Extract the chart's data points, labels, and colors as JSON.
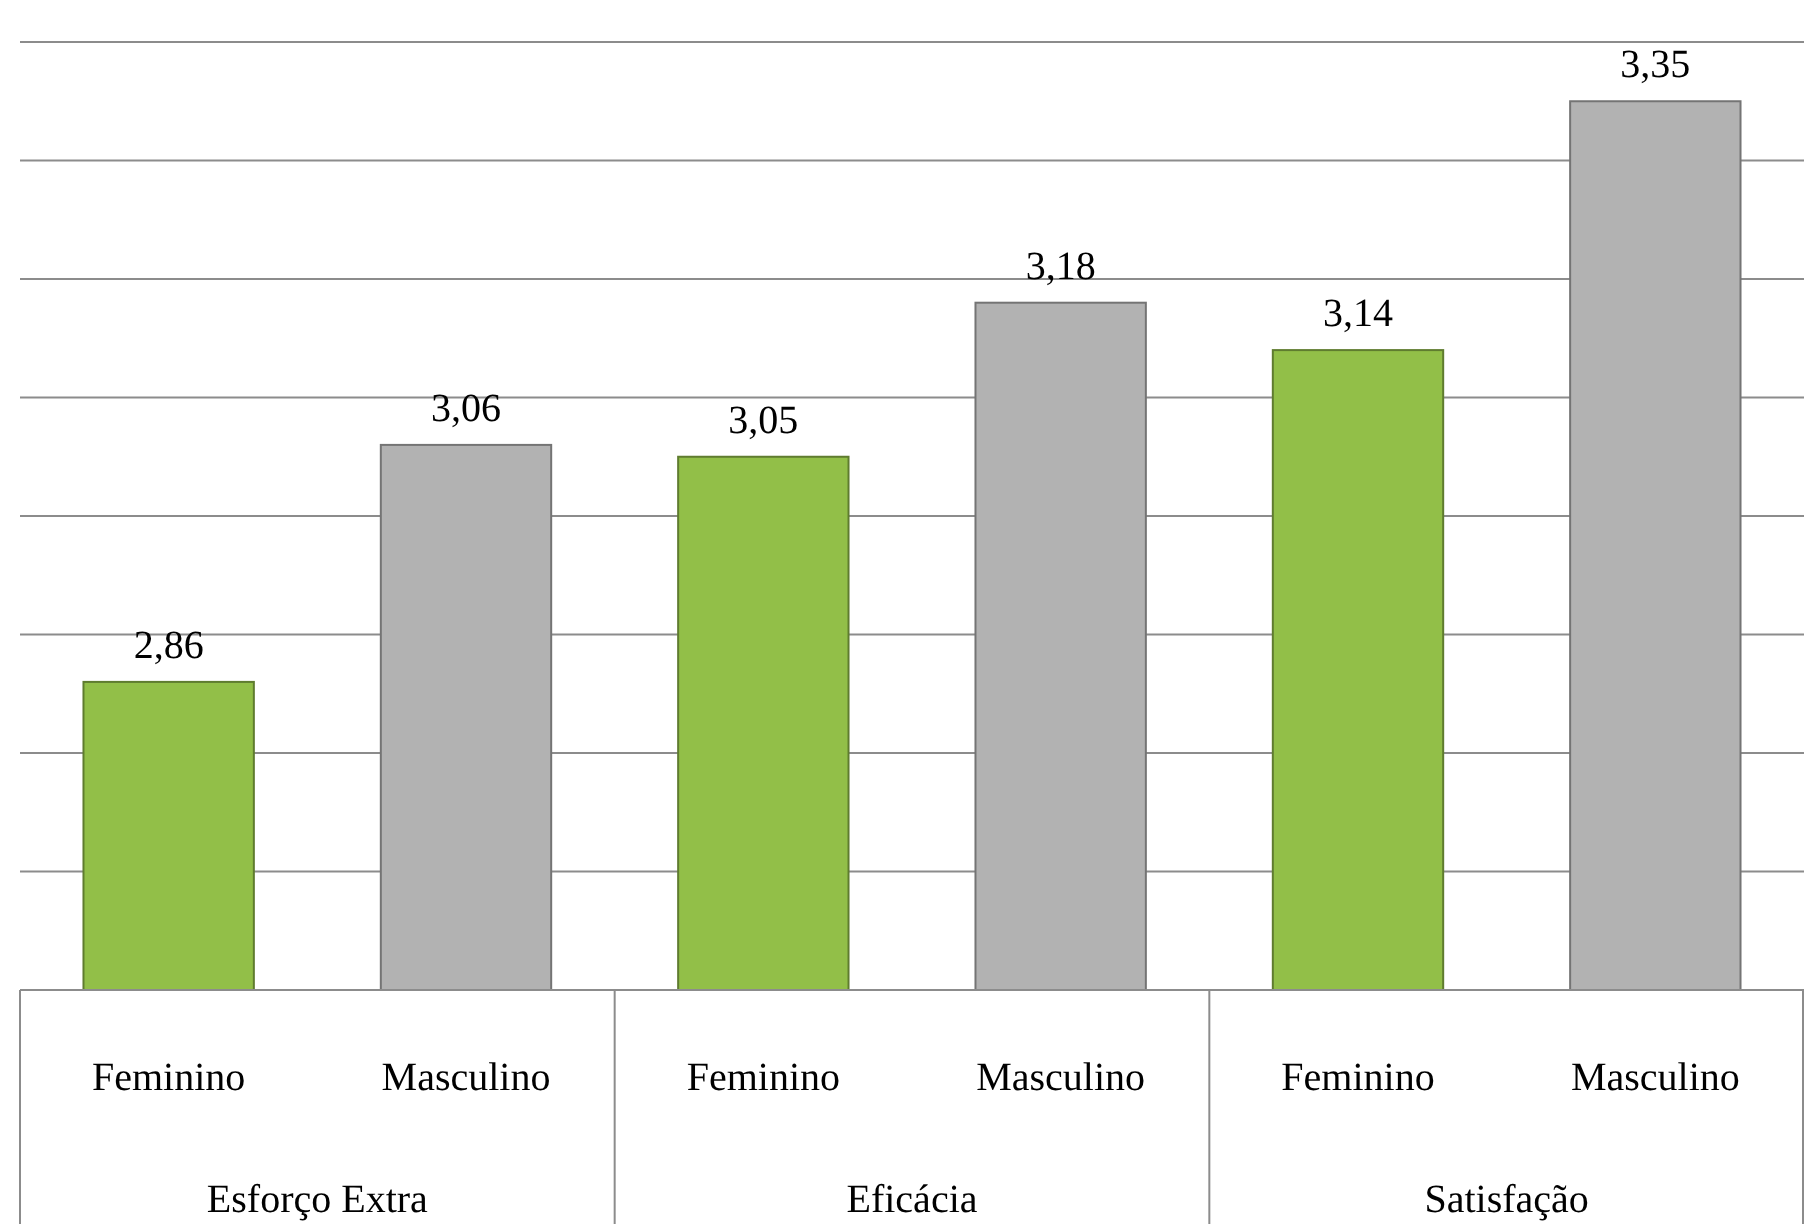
{
  "chart_data": {
    "type": "bar",
    "categories": [
      "Esforço Extra",
      "Eficácia",
      "Satisfação"
    ],
    "series": [
      {
        "name": "Feminino",
        "color": "#92bf48",
        "values": [
          2.86,
          3.05,
          3.14
        ],
        "value_labels": [
          "2,86",
          "3,05",
          "3,14"
        ]
      },
      {
        "name": "Masculino",
        "color": "#b2b2b2",
        "values": [
          3.06,
          3.18,
          3.35
        ],
        "value_labels": [
          "3,06",
          "3,18",
          "3,35"
        ]
      }
    ],
    "ylim": [
      2.6,
      3.4
    ],
    "yticks": [
      {
        "value": 2.6,
        "label": null
      },
      {
        "value": 2.7,
        "label": null
      },
      {
        "value": 2.8,
        "label": null
      },
      {
        "value": 2.9,
        "label": null
      },
      {
        "value": 3.0,
        "label": null
      },
      {
        "value": 3.1,
        "label": null
      },
      {
        "value": 3.2,
        "label": null
      },
      {
        "value": 3.3,
        "label": null
      },
      {
        "value": 3.4,
        "label": null
      }
    ],
    "grid": "y",
    "tick_labels": "x"
  }
}
